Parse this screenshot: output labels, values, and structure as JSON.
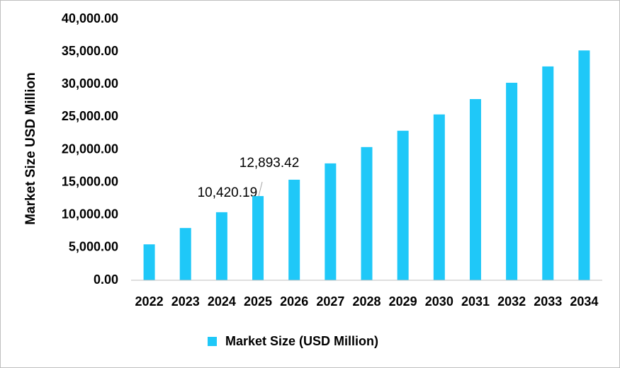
{
  "chart_data": {
    "type": "bar",
    "y_label": "Market Size USD Million",
    "categories": [
      "2022",
      "2023",
      "2024",
      "2025",
      "2026",
      "2027",
      "2028",
      "2029",
      "2030",
      "2031",
      "2032",
      "2033",
      "2034"
    ],
    "series": [
      {
        "name": "Market Size (USD Million)",
        "color": "#1fc8f8",
        "values": [
          5500,
          8000,
          10420.19,
          12893.42,
          15400,
          17900,
          20400,
          22900,
          25400,
          27750,
          30250,
          32750,
          35200
        ],
        "value_labels": [
          null,
          null,
          "10,420.19",
          "12,893.42",
          null,
          null,
          null,
          null,
          null,
          null,
          null,
          null,
          null
        ]
      }
    ],
    "ylim": [
      0,
      40000
    ],
    "yticks": [
      {
        "value": 0,
        "label": "0.00"
      },
      {
        "value": 5000,
        "label": "5,000.00"
      },
      {
        "value": 10000,
        "label": "10,000.00"
      },
      {
        "value": 15000,
        "label": "15,000.00"
      },
      {
        "value": 20000,
        "label": "20,000.00"
      },
      {
        "value": 25000,
        "label": "25,000.00"
      },
      {
        "value": 30000,
        "label": "30,000.00"
      },
      {
        "value": 35000,
        "label": "35,000.00"
      },
      {
        "value": 40000,
        "label": "40,000.00"
      }
    ],
    "legend_position": "bottom"
  }
}
